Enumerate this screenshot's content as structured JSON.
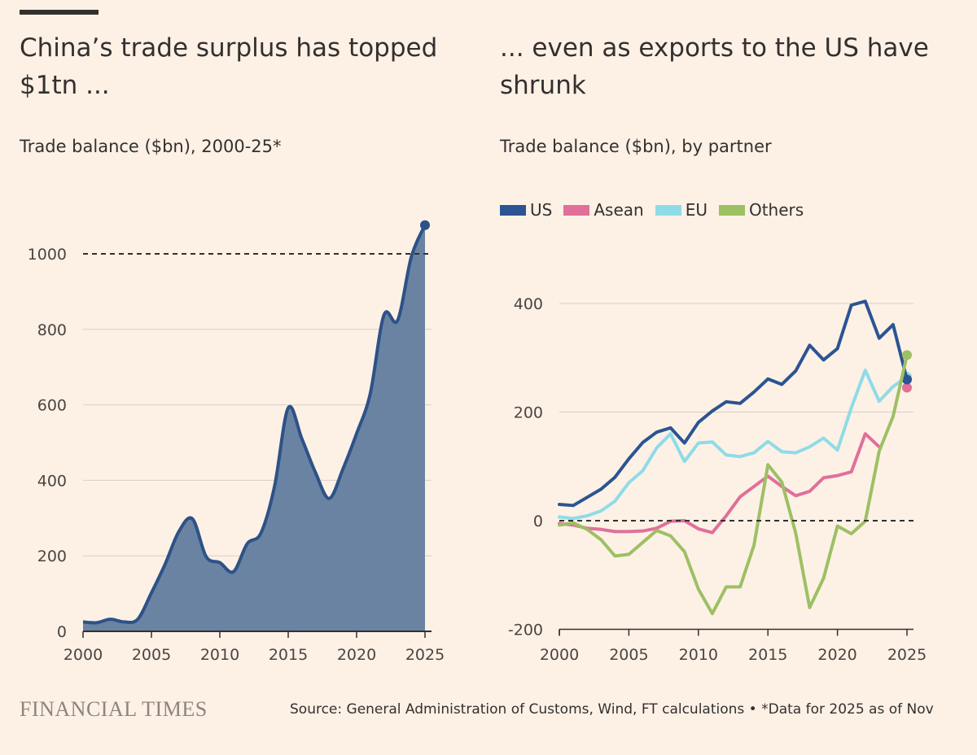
{
  "left": {
    "title_line1": "China’s trade surplus has topped",
    "title_line2": "$1tn ...",
    "subtitle": "Trade balance ($bn), 2000-25*"
  },
  "right": {
    "title_line1": "... even as exports to the US have",
    "title_line2": "shrunk",
    "subtitle": "Trade balance ($bn), by partner"
  },
  "footer": {
    "brand": "FINANCIAL TIMES",
    "source": "Source: General Administration of Customs, Wind, FT calculations • *Data for 2025 as of Nov"
  },
  "colors": {
    "background": "#fdf1e6",
    "area_fill": "#6a83a3",
    "area_line": "#2d5287",
    "US": "#2b5492",
    "Asean": "#e0709a",
    "EU": "#8fdbe8",
    "Others": "#9dc063",
    "grid": "#d9cfc5",
    "text": "#33302e"
  },
  "chart_data": [
    {
      "type": "area",
      "title": "China’s trade surplus has topped $1tn ...",
      "subtitle": "Trade balance ($bn), 2000-25*",
      "x": [
        2000,
        2001,
        2002,
        2003,
        2004,
        2005,
        2006,
        2007,
        2008,
        2009,
        2010,
        2011,
        2012,
        2013,
        2014,
        2015,
        2016,
        2017,
        2018,
        2019,
        2020,
        2021,
        2022,
        2023,
        2024,
        2025
      ],
      "series": [
        {
          "values": [
            25,
            23,
            32,
            25,
            32,
            102,
            178,
            264,
            298,
            198,
            182,
            158,
            232,
            260,
            384,
            592,
            510,
            420,
            352,
            430,
            524,
            630,
            838,
            824,
            992,
            1076
          ]
        }
      ],
      "reference_line": 1000,
      "xticks": [
        2000,
        2005,
        2010,
        2015,
        2020,
        2025
      ],
      "yticks": [
        0,
        200,
        400,
        600,
        800,
        1000
      ],
      "xlim": [
        2000,
        2025
      ],
      "ylim": [
        0,
        1100
      ],
      "grid": true,
      "end_marker": true
    },
    {
      "type": "line",
      "title": "... even as exports to the US have shrunk",
      "subtitle": "Trade balance ($bn), by partner",
      "x": [
        2000,
        2001,
        2002,
        2003,
        2004,
        2005,
        2006,
        2007,
        2008,
        2009,
        2010,
        2011,
        2012,
        2013,
        2014,
        2015,
        2016,
        2017,
        2018,
        2019,
        2020,
        2021,
        2022,
        2023,
        2024,
        2025
      ],
      "series": [
        {
          "name": "US",
          "values": [
            30,
            28,
            43,
            58,
            80,
            114,
            144,
            163,
            171,
            143,
            181,
            202,
            219,
            216,
            237,
            261,
            251,
            276,
            323,
            296,
            317,
            397,
            404,
            336,
            361,
            260
          ]
        },
        {
          "name": "Asean",
          "values": [
            -5,
            -8,
            -14,
            -16,
            -20,
            -20,
            -19,
            -14,
            -1,
            0,
            -15,
            -22,
            9,
            44,
            63,
            82,
            63,
            46,
            54,
            79,
            83,
            90,
            160,
            136,
            null,
            245
          ]
        },
        {
          "name": "EU",
          "values": [
            7,
            4,
            9,
            18,
            36,
            70,
            92,
            134,
            160,
            109,
            143,
            145,
            121,
            118,
            125,
            146,
            127,
            125,
            136,
            152,
            130,
            208,
            277,
            220,
            247,
            265
          ]
        },
        {
          "name": "Others",
          "values": [
            -8,
            -4,
            -16,
            -35,
            -65,
            -62,
            -40,
            -18,
            -28,
            -57,
            -126,
            -171,
            -122,
            -122,
            -45,
            103,
            71,
            -23,
            -160,
            -106,
            -10,
            -24,
            -1,
            128,
            192,
            305
          ]
        }
      ],
      "reference_line": 0,
      "xticks": [
        2000,
        2005,
        2010,
        2015,
        2020,
        2025
      ],
      "yticks": [
        -200,
        0,
        200,
        400
      ],
      "xlim": [
        2000,
        2025
      ],
      "ylim": [
        -200,
        420
      ],
      "grid": true,
      "legend_position": "top-left",
      "end_markers": true
    }
  ]
}
